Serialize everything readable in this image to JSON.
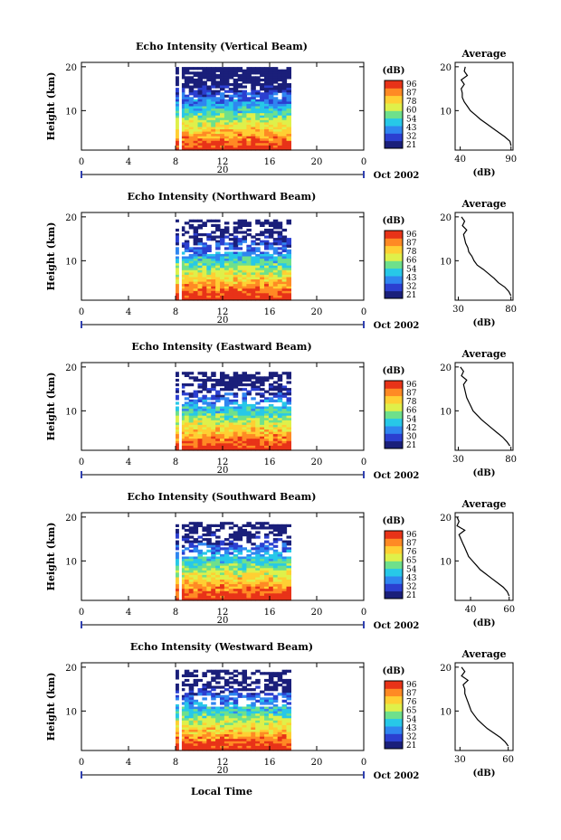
{
  "figure": {
    "date_label": "Oct 2002",
    "xlabel_bottom": "Local Time",
    "colorbar_unit": "(dB)",
    "colorbar_colors": [
      "#1a1f7a",
      "#2b3fd0",
      "#2f86f0",
      "#27c8e8",
      "#6ee08c",
      "#dff04a",
      "#ffcf33",
      "#ff8a24",
      "#e83318"
    ],
    "avg_title": "Average",
    "avg_xlabel": "(dB)",
    "x_ticks": [
      "0",
      "4",
      "8",
      "12",
      "16",
      "20",
      "0"
    ],
    "date_day": "20"
  },
  "chart_data": [
    {
      "type": "heatmap",
      "title": "Echo Intensity (Vertical Beam)",
      "ylabel": "Height (km)",
      "xlabel": "Local Time",
      "x_ticks": [
        "0",
        "4",
        "8",
        "12",
        "16",
        "20",
        "0"
      ],
      "y_ticks": [
        "20",
        "10"
      ],
      "xlim": [
        0,
        24
      ],
      "ylim": [
        1,
        21
      ],
      "data_x_range": [
        8,
        17.8
      ],
      "colorbar": {
        "label": "(dB)",
        "ticks": [
          "96",
          "87",
          "78",
          "60",
          "54",
          "43",
          "32",
          "21"
        ]
      },
      "average_profile": {
        "title": "Average",
        "xlabel": "(dB)",
        "x_ticks": [
          "40",
          "90"
        ],
        "xlim": [
          35,
          92
        ],
        "y_ticks": [
          "20",
          "10"
        ],
        "height": [
          2,
          3,
          4,
          5,
          6,
          7,
          8,
          9,
          10,
          11,
          12,
          13,
          14,
          15,
          16,
          17,
          18,
          19,
          20
        ],
        "db": [
          90,
          89,
          84,
          78,
          72,
          66,
          60,
          55,
          50,
          47,
          44,
          42,
          42,
          41,
          44,
          41,
          47,
          44,
          45
        ]
      }
    },
    {
      "type": "heatmap",
      "title": "Echo Intensity (Northward Beam)",
      "ylabel": "Height (km)",
      "xlabel": "Local Time",
      "x_ticks": [
        "0",
        "4",
        "8",
        "12",
        "16",
        "20",
        "0"
      ],
      "y_ticks": [
        "20",
        "10"
      ],
      "xlim": [
        0,
        24
      ],
      "ylim": [
        1,
        21
      ],
      "data_x_range": [
        8,
        17.8
      ],
      "colorbar": {
        "label": "(dB)",
        "ticks": [
          "96",
          "87",
          "78",
          "66",
          "54",
          "43",
          "32",
          "21"
        ]
      },
      "average_profile": {
        "title": "Average",
        "xlabel": "(dB)",
        "x_ticks": [
          "30",
          "80"
        ],
        "xlim": [
          27,
          82
        ],
        "y_ticks": [
          "20",
          "10"
        ],
        "height": [
          2,
          3,
          4,
          5,
          6,
          7,
          8,
          9,
          10,
          11,
          12,
          13,
          14,
          15,
          16,
          17,
          18,
          19,
          20
        ],
        "db": [
          80,
          78,
          74,
          68,
          64,
          59,
          54,
          48,
          45,
          43,
          40,
          39,
          37,
          36,
          35,
          38,
          34,
          36,
          33
        ]
      }
    },
    {
      "type": "heatmap",
      "title": "Echo Intensity (Eastward Beam)",
      "ylabel": "Height (km)",
      "xlabel": "Local Time",
      "x_ticks": [
        "0",
        "4",
        "8",
        "12",
        "16",
        "20",
        "0"
      ],
      "y_ticks": [
        "20",
        "10"
      ],
      "xlim": [
        0,
        24
      ],
      "ylim": [
        1,
        21
      ],
      "data_x_range": [
        8,
        17.8
      ],
      "colorbar": {
        "label": "(dB)",
        "ticks": [
          "96",
          "87",
          "78",
          "66",
          "54",
          "42",
          "30",
          "21"
        ]
      },
      "average_profile": {
        "title": "Average",
        "xlabel": "(dB)",
        "x_ticks": [
          "30",
          "80"
        ],
        "xlim": [
          27,
          82
        ],
        "y_ticks": [
          "20",
          "10"
        ],
        "height": [
          2,
          3,
          4,
          5,
          6,
          7,
          8,
          9,
          10,
          11,
          12,
          13,
          14,
          15,
          16,
          17,
          18,
          19,
          20
        ],
        "db": [
          79,
          76,
          72,
          67,
          62,
          57,
          52,
          48,
          44,
          42,
          40,
          38,
          37,
          36,
          35,
          38,
          33,
          35,
          32
        ]
      }
    },
    {
      "type": "heatmap",
      "title": "Echo Intensity (Southward Beam)",
      "ylabel": "Height (km)",
      "xlabel": "Local Time",
      "x_ticks": [
        "0",
        "4",
        "8",
        "12",
        "16",
        "20",
        "0"
      ],
      "y_ticks": [
        "20",
        "10"
      ],
      "xlim": [
        0,
        24
      ],
      "ylim": [
        1,
        21
      ],
      "data_x_range": [
        8,
        17.8
      ],
      "colorbar": {
        "label": "(dB)",
        "ticks": [
          "96",
          "87",
          "76",
          "65",
          "54",
          "43",
          "32",
          "21"
        ]
      },
      "average_profile": {
        "title": "Average",
        "xlabel": "(dB)",
        "x_ticks": [
          "40",
          "60"
        ],
        "xlim": [
          32,
          62
        ],
        "y_ticks": [
          "20",
          "10"
        ],
        "height": [
          2,
          3,
          4,
          5,
          6,
          7,
          8,
          9,
          10,
          11,
          12,
          13,
          14,
          15,
          16,
          17,
          18,
          19,
          20
        ],
        "db": [
          60,
          59,
          57,
          54,
          51,
          48,
          45,
          43,
          41,
          39,
          38,
          37,
          36,
          35,
          34,
          37,
          33,
          34,
          33
        ]
      }
    },
    {
      "type": "heatmap",
      "title": "Echo Intensity (Westward Beam)",
      "ylabel": "Height (km)",
      "xlabel": "Local Time",
      "x_ticks": [
        "0",
        "4",
        "8",
        "12",
        "16",
        "20",
        "0"
      ],
      "y_ticks": [
        "20",
        "10"
      ],
      "xlim": [
        0,
        24
      ],
      "ylim": [
        1,
        21
      ],
      "data_x_range": [
        8,
        17.8
      ],
      "colorbar": {
        "label": "(dB)",
        "ticks": [
          "96",
          "87",
          "76",
          "65",
          "54",
          "43",
          "32",
          "21"
        ]
      },
      "average_profile": {
        "title": "Average",
        "xlabel": "(dB)",
        "x_ticks": [
          "30",
          "60"
        ],
        "xlim": [
          27,
          63
        ],
        "y_ticks": [
          "20",
          "10"
        ],
        "height": [
          2,
          3,
          4,
          5,
          6,
          7,
          8,
          9,
          10,
          11,
          12,
          13,
          14,
          15,
          16,
          17,
          18,
          19,
          20
        ],
        "db": [
          60,
          58,
          55,
          51,
          47,
          44,
          41,
          39,
          37,
          36,
          35,
          34,
          33,
          33,
          32,
          35,
          31,
          33,
          31
        ]
      }
    }
  ]
}
